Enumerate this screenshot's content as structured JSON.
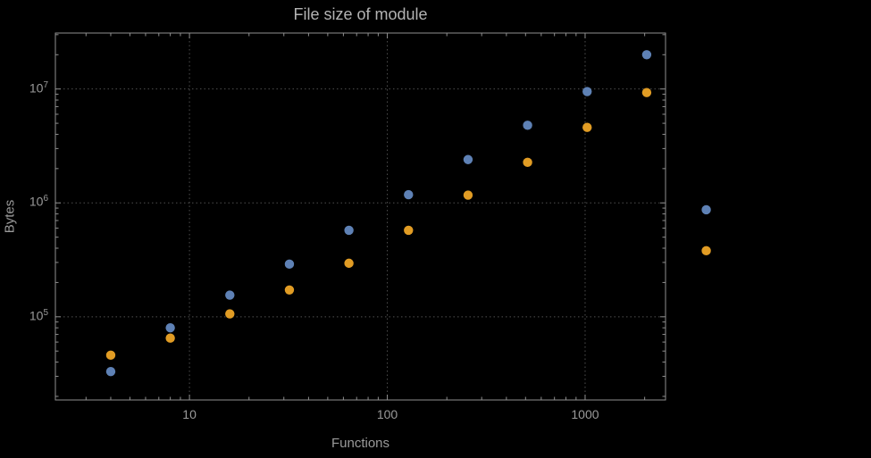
{
  "chart_data": {
    "type": "scatter",
    "title": "File size of module",
    "xlabel": "Functions",
    "ylabel": "Bytes",
    "xscale": "log",
    "yscale": "log",
    "xlim": [
      2.1,
      2550
    ],
    "ylim": [
      18600,
      31000000
    ],
    "grid": true,
    "legend": "none",
    "x_ticks": [
      {
        "value": 10,
        "label": "10"
      },
      {
        "value": 100,
        "label": "100"
      },
      {
        "value": 1000,
        "label": "1000"
      }
    ],
    "y_ticks": [
      {
        "value": 100000,
        "mantissa": "10",
        "exp": "5"
      },
      {
        "value": 1000000,
        "mantissa": "10",
        "exp": "6"
      },
      {
        "value": 10000000,
        "mantissa": "10",
        "exp": "7"
      }
    ],
    "series": [
      {
        "name": "series-1",
        "color": "#5e81b5",
        "points": [
          [
            4,
            33000
          ],
          [
            8,
            80000
          ],
          [
            16,
            155000
          ],
          [
            32,
            290000
          ],
          [
            64,
            575000
          ],
          [
            128,
            1180000
          ],
          [
            256,
            2400000
          ],
          [
            512,
            4800000
          ],
          [
            1024,
            9500000
          ],
          [
            2048,
            20000000
          ],
          [
            4096,
            870000
          ]
        ]
      },
      {
        "name": "series-2",
        "color": "#e19c24",
        "points": [
          [
            4,
            46000
          ],
          [
            8,
            65000
          ],
          [
            16,
            106000
          ],
          [
            32,
            172000
          ],
          [
            64,
            295000
          ],
          [
            128,
            575000
          ],
          [
            256,
            1170000
          ],
          [
            512,
            2270000
          ],
          [
            1024,
            4600000
          ],
          [
            2048,
            9300000
          ],
          [
            4096,
            380000
          ]
        ]
      }
    ],
    "style": {
      "background": "#000000",
      "frame_color": "#8f8f8f",
      "grid_color": "#4f4f4f",
      "text_color": "#9a9a9a",
      "title_color": "#b3b3b3"
    }
  }
}
